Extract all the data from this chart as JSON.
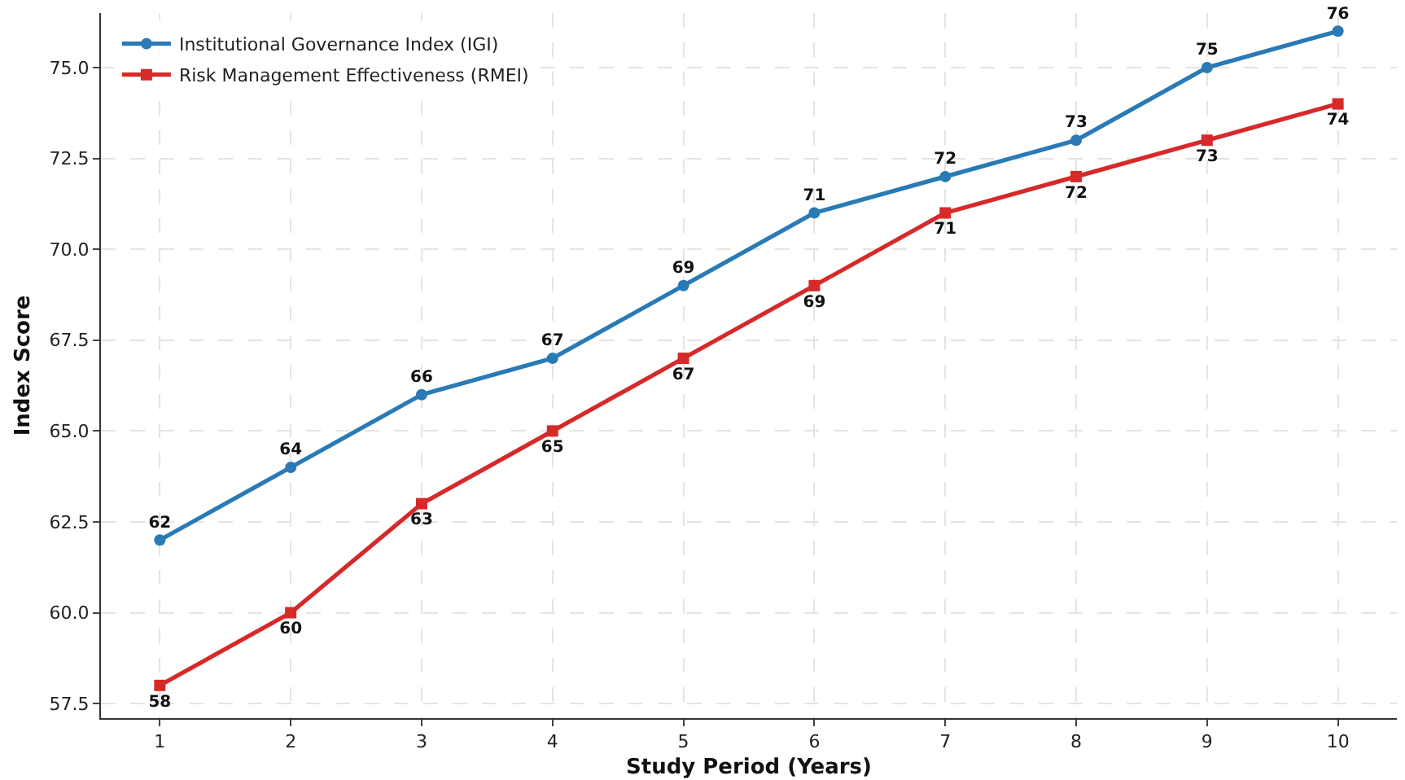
{
  "chart_data": {
    "type": "line",
    "xlabel": "Study Period (Years)",
    "ylabel": "Index Score",
    "x": [
      1,
      2,
      3,
      4,
      5,
      6,
      7,
      8,
      9,
      10
    ],
    "series": [
      {
        "name": "Institutional Governance Index (IGI)",
        "color": "#2a7ab5",
        "marker": "circle",
        "values": [
          62,
          64,
          66,
          67,
          69,
          71,
          72,
          73,
          75,
          76
        ]
      },
      {
        "name": "Risk Management Effectiveness (RMEI)",
        "color": "#d62a2a",
        "marker": "square",
        "values": [
          58,
          60,
          63,
          65,
          67,
          69,
          71,
          72,
          73,
          74
        ]
      }
    ],
    "xlim": [
      0.55,
      10.45
    ],
    "xticks": [
      1,
      2,
      3,
      4,
      5,
      6,
      7,
      8,
      9,
      10
    ],
    "ylim": [
      57.1,
      76.5
    ],
    "yticks": [
      {
        "value": 57.5,
        "label": "57.5"
      },
      {
        "value": 60,
        "label": "60.0"
      },
      {
        "value": 62.5,
        "label": "62.5"
      },
      {
        "value": 65,
        "label": "65.0"
      },
      {
        "value": 67.5,
        "label": "67.5"
      },
      {
        "value": 70,
        "label": "70.0"
      },
      {
        "value": 72.5,
        "label": "72.5"
      },
      {
        "value": 75,
        "label": "75.0"
      }
    ],
    "grid": true,
    "legend": "top left",
    "line_style": "solid",
    "data_labels": true
  }
}
